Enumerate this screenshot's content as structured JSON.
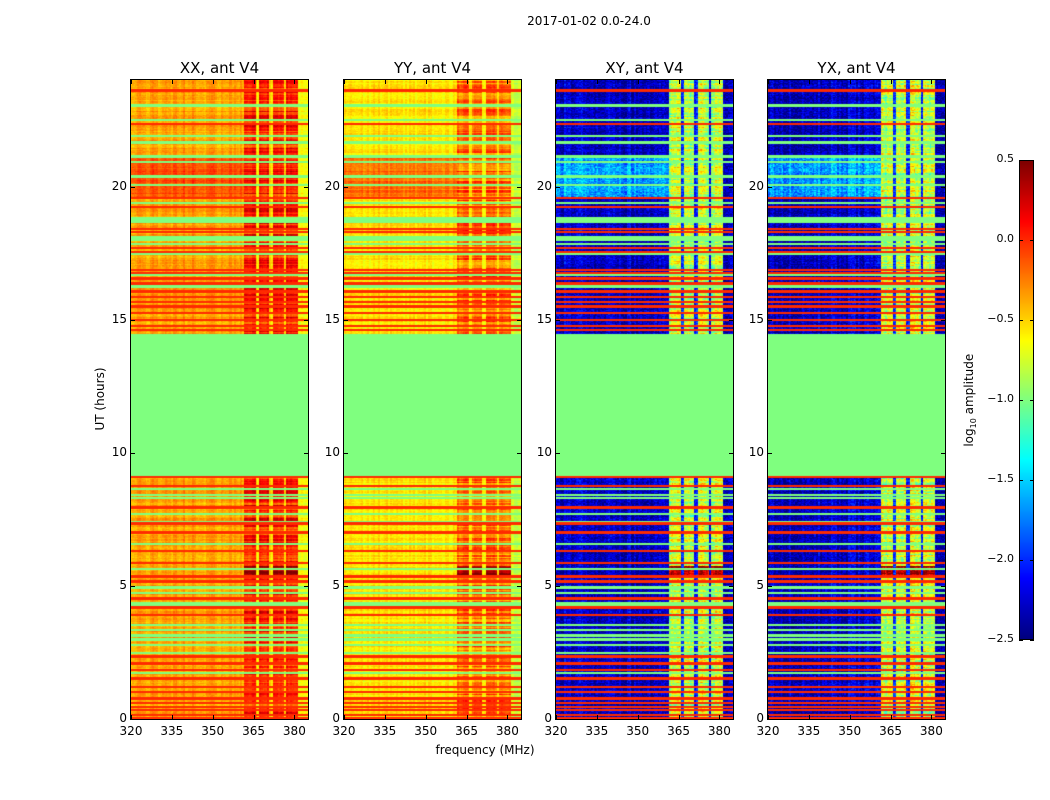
{
  "figure": {
    "suptitle": "2017-01-02 0.0-24.0",
    "xlabel": "frequency (MHz)",
    "ylabel": "UT (hours)"
  },
  "colorbar": {
    "label_prefix": "log",
    "label_sub": "10",
    "label_suffix": " amplitude",
    "range": [
      -2.5,
      0.5
    ],
    "colormap": "jet",
    "ticks": [
      "0.5",
      "0.0",
      "−0.5",
      "−1.0",
      "−1.5",
      "−2.0",
      "−2.5"
    ],
    "tick_values": [
      0.5,
      0.0,
      -0.5,
      -1.0,
      -1.5,
      -2.0,
      -2.5
    ]
  },
  "chart_data": [
    {
      "type": "heatmap",
      "title": "XX, ant V4",
      "background": -0.35,
      "day_block": -0.1,
      "band": 0.05,
      "band_gap": -0.55,
      "edge": -0.65
    },
    {
      "type": "heatmap",
      "title": "YY, ant V4",
      "background": -0.55,
      "day_block": -0.2,
      "band": -0.2,
      "band_gap": -0.6,
      "edge": -0.75
    },
    {
      "type": "heatmap",
      "title": "XY, ant V4",
      "background": -2.3,
      "day_block": -1.65,
      "band": -0.8,
      "band_gap": -2.1,
      "edge": -2.3
    },
    {
      "type": "heatmap",
      "title": "YX, ant V4",
      "background": -2.3,
      "day_block": -1.65,
      "band": -0.8,
      "band_gap": -2.1,
      "edge": -2.3
    }
  ],
  "axes": {
    "xlim": [
      320,
      385
    ],
    "ylim": [
      0,
      24
    ],
    "xticks": [
      320,
      335,
      350,
      365,
      380
    ],
    "xtick_labels": [
      "320",
      "335",
      "350",
      "365",
      "380"
    ],
    "yticks": [
      0,
      5,
      10,
      15,
      20
    ],
    "ytick_labels": [
      "0",
      "5",
      "10",
      "15",
      "20"
    ]
  },
  "structure": {
    "bands_mhz": [
      [
        361.5,
        366
      ],
      [
        367,
        370.7
      ],
      [
        372.2,
        376.2
      ],
      [
        377,
        381.4
      ]
    ],
    "day_block_hours": [
      19.55,
      21.2
    ],
    "flagged_block_hours": [
      9.1,
      14.45
    ],
    "flagged_value": -1.0,
    "red_line_value": 0.0,
    "strong_event_hours": [
      5.3,
      5.75
    ],
    "strong_event_value": 0.45,
    "red_lines_hours": [
      23.6,
      22.34,
      19.56,
      19.22,
      18.4,
      18.3,
      17.68,
      17.55,
      16.86,
      16.74,
      16.55,
      16.36,
      16.05,
      15.86,
      15.67,
      15.49,
      15.24,
      14.99,
      14.77,
      14.61,
      9.08,
      8.75,
      7.95,
      7.35,
      7.0,
      6.32,
      5.87,
      5.35,
      5.16,
      4.53,
      4.19,
      3.9,
      2.34,
      2.09,
      1.84,
      1.52,
      1.21,
      1.02,
      0.77,
      0.59,
      0.46,
      0.34,
      0.15,
      0.02
    ],
    "green_lines_hours": [
      23.04,
      22.5,
      21.9,
      21.66,
      21.12,
      20.91,
      20.37,
      20.06,
      19.37,
      18.8,
      18.68,
      18.09,
      17.99,
      17.83,
      17.49,
      16.68,
      16.24,
      8.63,
      8.41,
      8.29,
      7.69,
      7.41,
      6.57,
      5.63,
      4.94,
      4.74,
      4.34,
      4.28,
      3.53,
      3.34,
      3.13,
      2.99,
      2.78,
      2.49,
      1.72
    ]
  }
}
